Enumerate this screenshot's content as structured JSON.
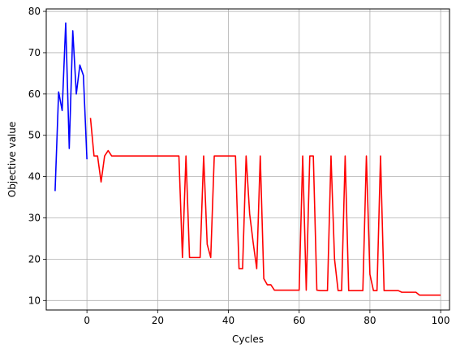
{
  "chart_data": {
    "type": "line",
    "title": "",
    "xlabel": "Cycles",
    "ylabel": "Objective value",
    "xlim": [
      -11.5,
      102.5
    ],
    "ylim": [
      7.7,
      80.6
    ],
    "x_ticks": [
      0,
      20,
      40,
      60,
      80,
      100
    ],
    "y_ticks": [
      10,
      20,
      30,
      40,
      50,
      60,
      70,
      80
    ],
    "grid": true,
    "legend": "none",
    "series": [
      {
        "color": "#0000ff",
        "x": [
          -9,
          -8,
          -7,
          -6,
          -5,
          -4,
          -3,
          -2,
          -1,
          0
        ],
        "y": [
          36.5,
          60.5,
          56.0,
          77.2,
          46.8,
          75.3,
          60.0,
          67.0,
          64.5,
          44.2
        ]
      },
      {
        "color": "#ff0000",
        "x": [
          1,
          2,
          3,
          4,
          5,
          6,
          7,
          8,
          9,
          10,
          11,
          12,
          13,
          14,
          15,
          16,
          17,
          18,
          19,
          20,
          21,
          22,
          23,
          24,
          25,
          26,
          27,
          28,
          29,
          30,
          31,
          32,
          33,
          34,
          35,
          36,
          37,
          38,
          39,
          40,
          41,
          42,
          43,
          44,
          45,
          46,
          47,
          48,
          49,
          50,
          51,
          52,
          53,
          54,
          55,
          56,
          57,
          58,
          59,
          60,
          61,
          62,
          63,
          64,
          65,
          66,
          67,
          68,
          69,
          70,
          71,
          72,
          73,
          74,
          75,
          76,
          77,
          78,
          79,
          80,
          81,
          82,
          83,
          84,
          85,
          86,
          87,
          88,
          89,
          90,
          91,
          92,
          93,
          94,
          95,
          96,
          97,
          98,
          99,
          100
        ],
        "y": [
          54.2,
          45.0,
          45.0,
          38.7,
          45.0,
          46.3,
          45.0,
          45.0,
          45.0,
          45.0,
          45.0,
          45.0,
          45.0,
          45.0,
          45.0,
          45.0,
          45.0,
          45.0,
          45.0,
          45.0,
          45.0,
          45.0,
          45.0,
          45.0,
          45.0,
          45.0,
          20.4,
          45.0,
          20.4,
          20.4,
          20.4,
          20.4,
          45.0,
          23.6,
          20.4,
          45.0,
          45.0,
          45.0,
          45.0,
          45.0,
          45.0,
          45.0,
          17.7,
          17.7,
          45.0,
          31.0,
          24.0,
          17.7,
          45.0,
          15.3,
          13.8,
          13.8,
          12.5,
          12.5,
          12.5,
          12.5,
          12.5,
          12.5,
          12.5,
          12.5,
          45.0,
          12.5,
          45.0,
          45.0,
          12.5,
          12.4,
          12.4,
          12.4,
          45.0,
          20.0,
          12.4,
          12.4,
          45.0,
          12.4,
          12.4,
          12.4,
          12.4,
          12.4,
          45.0,
          16.3,
          12.4,
          12.4,
          45.0,
          12.4,
          12.4,
          12.4,
          12.4,
          12.4,
          12.0,
          12.0,
          12.0,
          12.0,
          12.0,
          11.3,
          11.3,
          11.3,
          11.3,
          11.3,
          11.3,
          11.3
        ]
      }
    ]
  }
}
